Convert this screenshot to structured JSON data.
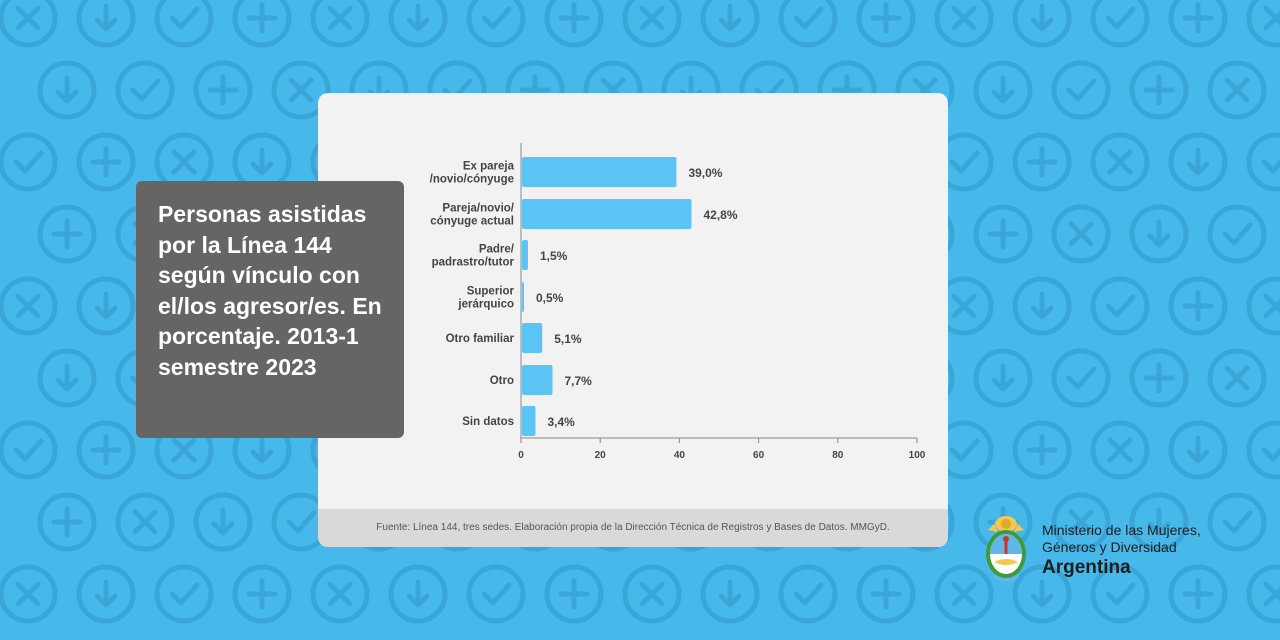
{
  "title": "Personas asistidas por la Línea 144 según vínculo con el/los agresor/es. En porcentaje. 2013-1 semestre 2023",
  "source": "Fuente: Línea 144, tres sedes. Elaboración propia de la Dirección Técnica de Registros y Bases de Datos. MMGyD.",
  "logo": {
    "line1": "Ministerio de las Mujeres,",
    "line2": "Géneros y Diversidad",
    "line3": "Argentina"
  },
  "colors": {
    "background": "#46b8ea",
    "bar": "#5bc4f5",
    "title_box": "#676563"
  },
  "chart_data": {
    "type": "bar",
    "orientation": "horizontal",
    "categories": [
      [
        "Ex pareja",
        "/novio/cónyuge"
      ],
      [
        "Pareja/novio/",
        "cónyuge actual"
      ],
      [
        "Padre/",
        "padrastro/tutor"
      ],
      [
        "Superior",
        "jerárquico"
      ],
      [
        "Otro familiar"
      ],
      [
        "Otro"
      ],
      [
        "Sin datos"
      ]
    ],
    "values": [
      39.0,
      42.8,
      1.5,
      0.5,
      5.1,
      7.7,
      3.4
    ],
    "value_labels": [
      "39,0%",
      "42,8%",
      "1,5%",
      "0,5%",
      "5,1%",
      "7,7%",
      "3,4%"
    ],
    "xlim": [
      0,
      100
    ],
    "xticks": [
      0,
      20,
      40,
      60,
      80,
      100
    ],
    "grid": false,
    "legend": "none"
  }
}
